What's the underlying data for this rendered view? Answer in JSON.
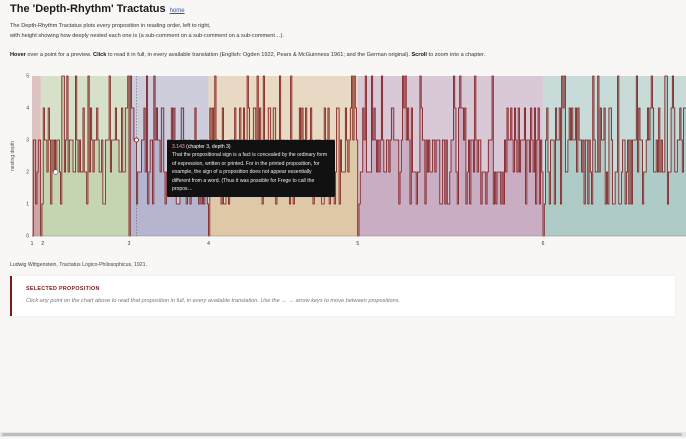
{
  "header": {
    "title": "The 'Depth-Rhythm' Tractatus",
    "home_label": "home"
  },
  "intro": {
    "line1": "The Depth-Rhythm Tractatus plots every proposition in reading order, left to right,",
    "line2": "with height showing how deeply nested each one is (a sub-comment on a sub-comment on a sub-comment…)."
  },
  "instructions": {
    "hover": "Hover",
    "t1": " over a point for a preview. ",
    "click": "Click",
    "t2": " to read it in full, in every available translation (English: Ogden 1922, Pears & McGuinness 1961; and the German original). ",
    "scroll": "Scroll",
    "t3": " to zoom into a chapter."
  },
  "chart_data": {
    "type": "area",
    "ylabel": "nesting depth",
    "ylim": [
      0,
      5
    ],
    "yticks": [
      "0",
      "1",
      "2",
      "3",
      "4",
      "5"
    ],
    "xlabel": "",
    "chapters": [
      {
        "label": "1",
        "start": 0,
        "end": 7,
        "color": "#c9a0a0"
      },
      {
        "label": "2",
        "start": 7,
        "end": 78,
        "color": "#c2d2ae"
      },
      {
        "label": "3",
        "start": 78,
        "end": 142,
        "color": "#b0b0cc"
      },
      {
        "label": "4",
        "start": 142,
        "end": 262,
        "color": "#dcc4a2"
      },
      {
        "label": "5",
        "start": 262,
        "end": 411,
        "color": "#c4a8c0"
      },
      {
        "label": "6",
        "start": 411,
        "end": 526,
        "color": "#aac8c4"
      }
    ],
    "highlight": {
      "chapter": 3,
      "depth": 3
    },
    "hover_point": {
      "chapter": 2,
      "depth": 2
    }
  },
  "tooltip": {
    "id": "3.143",
    "meta": "(chapter 3, depth 3)",
    "text": "That the propositional sign is a fact is concealed by the ordinary form of expression, written or printed. For in the printed proposition, for example, the sign of a proposition does not appear essentially different from a word. (Thus it was possible for Frege to call the propos…"
  },
  "credit": "Ludwig Wittgenstein, Tractatus Logico-Philosophicus, 1921.",
  "panel": {
    "heading": "SELECTED PROPOSITION",
    "placeholder": "Click any point on the chart above to read that proposition in full, in every available translation. Use the ← → arrow keys to move between propositions."
  },
  "colors": {
    "line": "#7a1212",
    "accent": "#7a1a1a"
  }
}
